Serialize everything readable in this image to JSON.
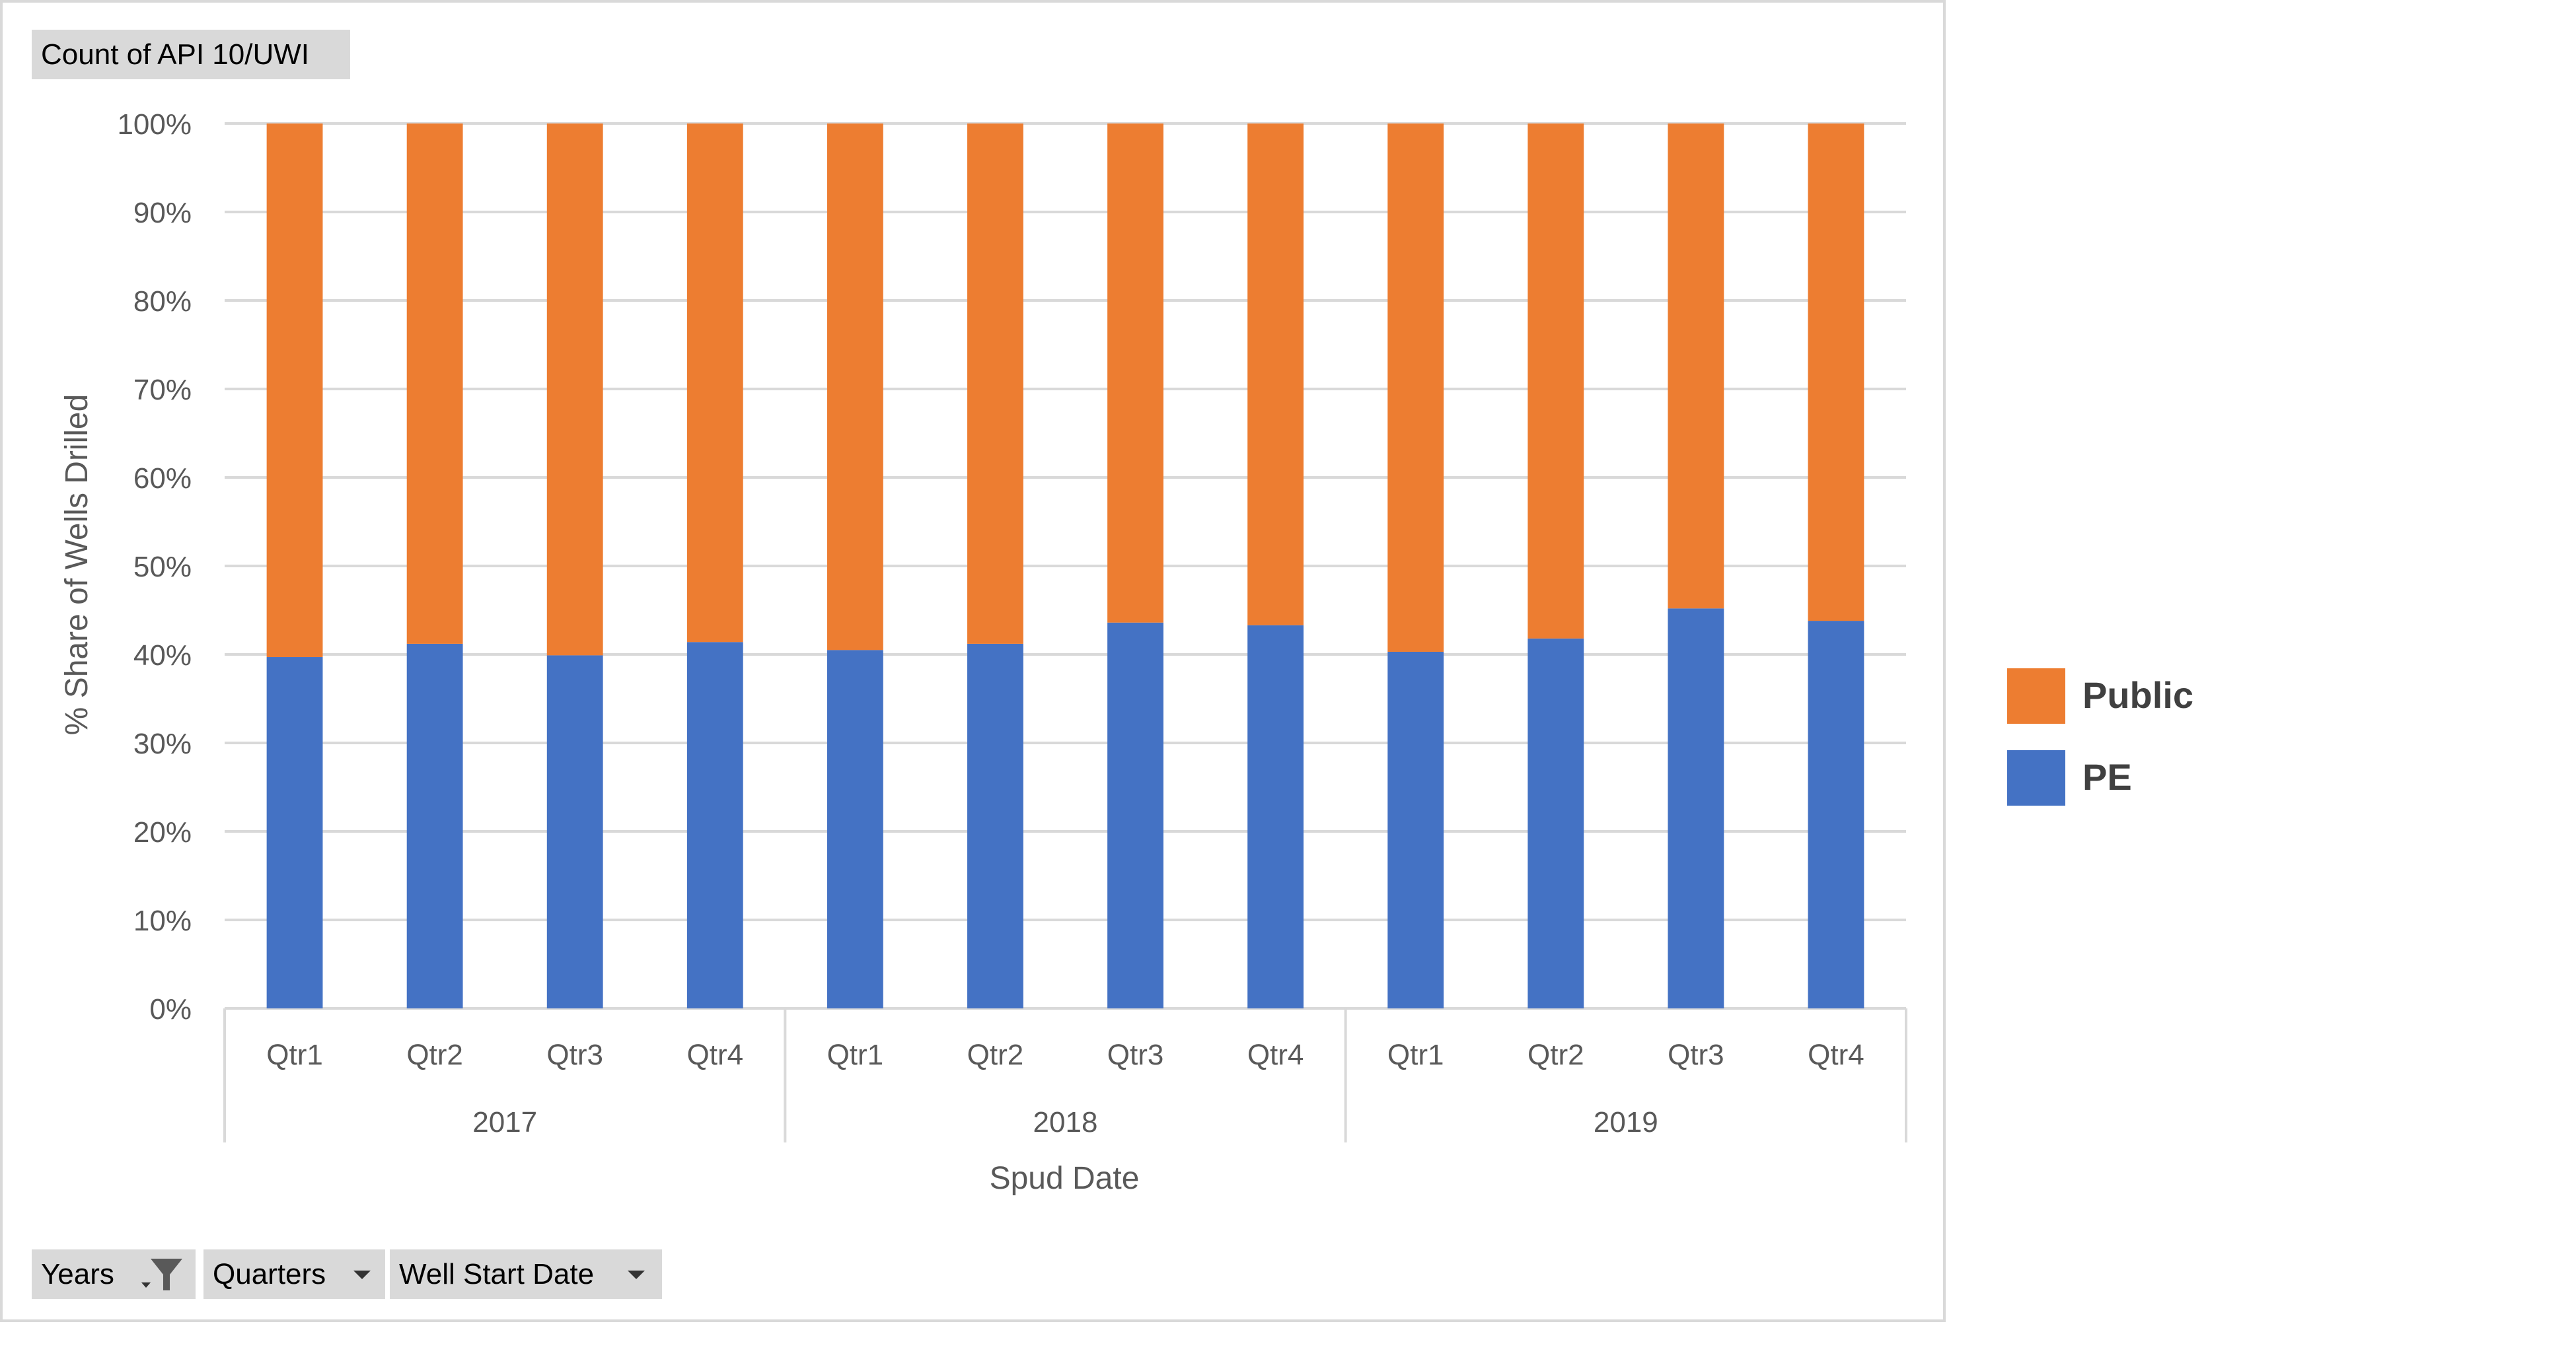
{
  "pivot_fields": {
    "value_field": "Count of API 10/UWI",
    "axis_fields": [
      "Years",
      "Quarters",
      "Well Start Date"
    ]
  },
  "colors": {
    "Public": "#ed7d31",
    "PE": "#4472c4",
    "grid": "#d9d9d9",
    "text": "#595959"
  },
  "chart_data": {
    "type": "bar",
    "stacked": "percent",
    "categories": [
      "Qtr1",
      "Qtr2",
      "Qtr3",
      "Qtr4",
      "Qtr1",
      "Qtr2",
      "Qtr3",
      "Qtr4",
      "Qtr1",
      "Qtr2",
      "Qtr3",
      "Qtr4"
    ],
    "category_groups": [
      {
        "label": "2017",
        "count": 4
      },
      {
        "label": "2018",
        "count": 4
      },
      {
        "label": "2019",
        "count": 4
      }
    ],
    "series": [
      {
        "name": "PE",
        "values": [
          39.7,
          41.2,
          39.9,
          41.4,
          40.5,
          41.2,
          43.6,
          43.3,
          40.3,
          41.8,
          45.2,
          43.8
        ]
      },
      {
        "name": "Public",
        "values": [
          60.3,
          58.8,
          60.1,
          58.6,
          59.5,
          58.8,
          56.4,
          56.7,
          59.7,
          58.2,
          54.8,
          56.2
        ]
      }
    ],
    "xlabel": "Spud Date",
    "ylabel": "% Share of Wells Drilled",
    "ylim": [
      0,
      100
    ],
    "yticks": [
      "0%",
      "10%",
      "20%",
      "30%",
      "40%",
      "50%",
      "60%",
      "70%",
      "80%",
      "90%",
      "100%"
    ],
    "legend": {
      "position": "right",
      "entries": [
        "Public",
        "PE"
      ]
    },
    "grid": true
  }
}
